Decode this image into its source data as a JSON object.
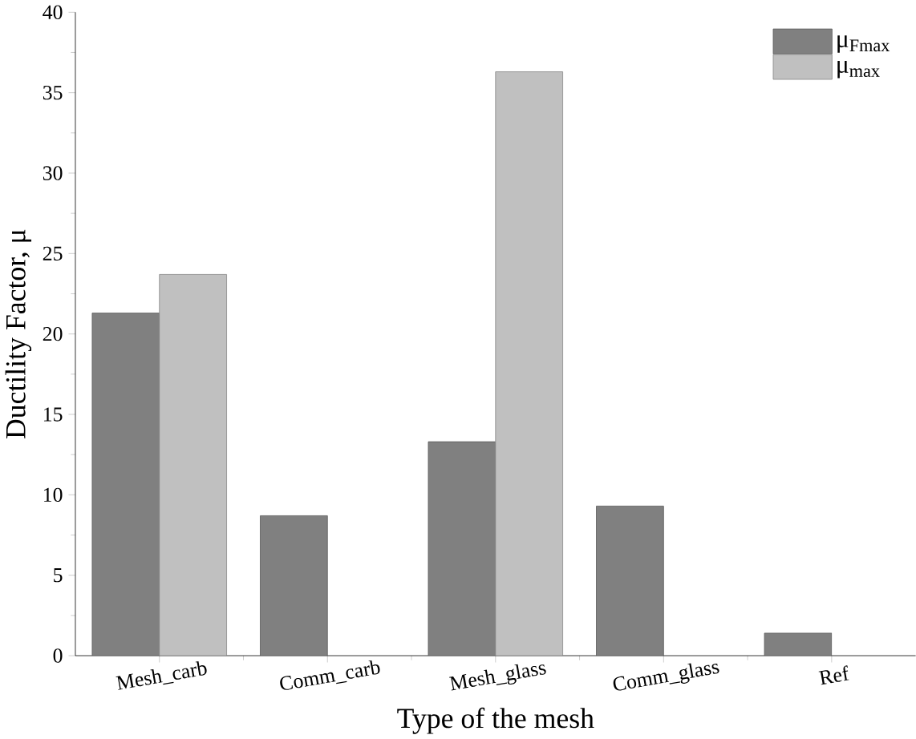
{
  "chart_data": {
    "type": "bar",
    "xlabel": "Type of the mesh",
    "ylabel": "Ductility Factor, μ",
    "categories": [
      "Mesh_carb",
      "Comm_carb",
      "Mesh_glass",
      "Comm_glass",
      "Ref"
    ],
    "series": [
      {
        "name": "μ$_{Fmax}$",
        "color": "#808080",
        "values": [
          21.3,
          8.7,
          13.3,
          9.3,
          1.4
        ]
      },
      {
        "name": "μ$_{max}$",
        "color": "#c0c0c0",
        "values": [
          23.7,
          null,
          36.3,
          null,
          null
        ]
      }
    ],
    "ylim": [
      0,
      40
    ],
    "yticks": [
      0,
      5,
      10,
      15,
      20,
      25,
      30,
      35,
      40
    ],
    "grid": false,
    "legend": "top right"
  }
}
